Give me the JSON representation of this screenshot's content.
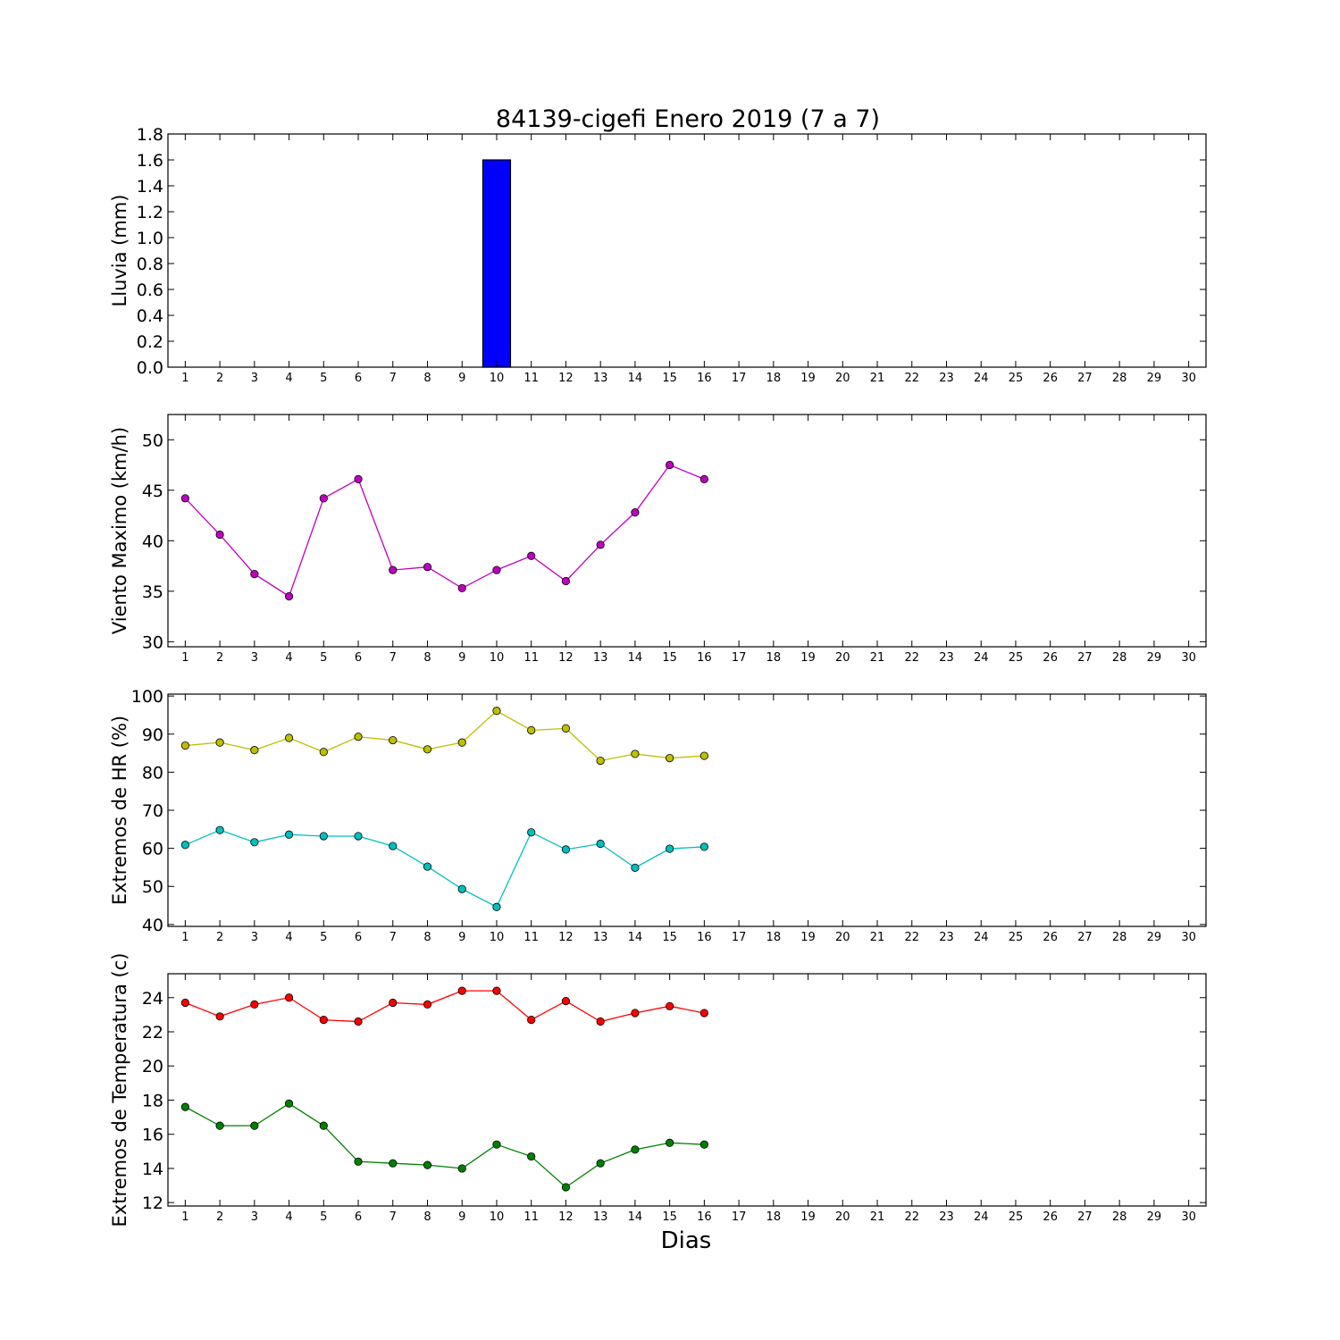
{
  "title": "84139-cigefi Enero 2019  (7 a 7)",
  "xlabel": "Dias",
  "chart_data": [
    {
      "type": "bar",
      "ylabel": "Lluvia (mm)",
      "ylim": [
        0,
        1.8
      ],
      "yticks": [
        "0.0",
        "0.2",
        "0.4",
        "0.6",
        "0.8",
        "1.0",
        "1.2",
        "1.4",
        "1.6",
        "1.8"
      ],
      "ytick_values": [
        0,
        0.2,
        0.4,
        0.6,
        0.8,
        1.0,
        1.2,
        1.4,
        1.6,
        1.8
      ],
      "xticks": [
        1,
        2,
        3,
        4,
        5,
        6,
        7,
        8,
        9,
        10,
        11,
        12,
        13,
        14,
        15,
        16,
        17,
        18,
        19,
        20,
        21,
        22,
        23,
        24,
        25,
        26,
        27,
        28,
        29,
        30
      ],
      "x": [
        1,
        2,
        3,
        4,
        5,
        6,
        7,
        8,
        9,
        10,
        11,
        12,
        13,
        14,
        15,
        16
      ],
      "series": [
        {
          "color": "#0000ff",
          "values": [
            0,
            0,
            0,
            0,
            0,
            0,
            0,
            0,
            0,
            1.6,
            0,
            0,
            0,
            0,
            0,
            0
          ]
        }
      ]
    },
    {
      "type": "line",
      "ylabel": "Viento Maximo (km/h)",
      "ylim": [
        29.5,
        52.5
      ],
      "yticks": [
        "30",
        "35",
        "40",
        "45",
        "50"
      ],
      "ytick_values": [
        30,
        35,
        40,
        45,
        50
      ],
      "xticks": [
        1,
        2,
        3,
        4,
        5,
        6,
        7,
        8,
        9,
        10,
        11,
        12,
        13,
        14,
        15,
        16,
        17,
        18,
        19,
        20,
        21,
        22,
        23,
        24,
        25,
        26,
        27,
        28,
        29,
        30
      ],
      "x": [
        1,
        2,
        3,
        4,
        5,
        6,
        7,
        8,
        9,
        10,
        11,
        12,
        13,
        14,
        15,
        16
      ],
      "series": [
        {
          "color": "#bf00bf",
          "values": [
            44.2,
            40.6,
            36.7,
            34.5,
            44.2,
            46.1,
            37.1,
            37.4,
            35.3,
            37.1,
            38.5,
            36.0,
            39.6,
            42.8,
            47.5,
            46.1
          ]
        }
      ]
    },
    {
      "type": "line",
      "ylabel": "Extremos de HR (%)",
      "ylim": [
        39.5,
        100.5
      ],
      "yticks": [
        "40",
        "50",
        "60",
        "70",
        "80",
        "90",
        "100"
      ],
      "ytick_values": [
        40,
        50,
        60,
        70,
        80,
        90,
        100
      ],
      "xticks": [
        1,
        2,
        3,
        4,
        5,
        6,
        7,
        8,
        9,
        10,
        11,
        12,
        13,
        14,
        15,
        16,
        17,
        18,
        19,
        20,
        21,
        22,
        23,
        24,
        25,
        26,
        27,
        28,
        29,
        30
      ],
      "x": [
        1,
        2,
        3,
        4,
        5,
        6,
        7,
        8,
        9,
        10,
        11,
        12,
        13,
        14,
        15,
        16
      ],
      "series": [
        {
          "color": "#bfbf00",
          "values": [
            87,
            87.8,
            85.8,
            89,
            85.3,
            89.3,
            88.4,
            86,
            87.8,
            96.1,
            91,
            91.5,
            83,
            84.8,
            83.7,
            84.3
          ]
        },
        {
          "color": "#00bfbf",
          "values": [
            60.9,
            64.8,
            61.6,
            63.6,
            63.2,
            63.2,
            60.6,
            55.2,
            49.3,
            44.6,
            64.2,
            59.7,
            61.2,
            54.9,
            59.9,
            60.4
          ]
        }
      ]
    },
    {
      "type": "line",
      "ylabel": "Extremos de Temperatura (c)",
      "ylim": [
        11.8,
        25.4
      ],
      "yticks": [
        "12",
        "14",
        "16",
        "18",
        "20",
        "22",
        "24"
      ],
      "ytick_values": [
        12,
        14,
        16,
        18,
        20,
        22,
        24
      ],
      "xticks": [
        1,
        2,
        3,
        4,
        5,
        6,
        7,
        8,
        9,
        10,
        11,
        12,
        13,
        14,
        15,
        16,
        17,
        18,
        19,
        20,
        21,
        22,
        23,
        24,
        25,
        26,
        27,
        28,
        29,
        30
      ],
      "x": [
        1,
        2,
        3,
        4,
        5,
        6,
        7,
        8,
        9,
        10,
        11,
        12,
        13,
        14,
        15,
        16
      ],
      "series": [
        {
          "color": "#ff0000",
          "values": [
            23.7,
            22.9,
            23.6,
            24.0,
            22.7,
            22.6,
            23.7,
            23.6,
            24.4,
            24.4,
            22.7,
            23.8,
            22.6,
            23.1,
            23.5,
            23.1
          ]
        },
        {
          "color": "#008000",
          "values": [
            17.6,
            16.5,
            16.5,
            17.8,
            16.5,
            14.4,
            14.3,
            14.2,
            14.0,
            15.4,
            14.7,
            12.9,
            14.3,
            15.1,
            15.5,
            15.4
          ]
        }
      ]
    }
  ]
}
